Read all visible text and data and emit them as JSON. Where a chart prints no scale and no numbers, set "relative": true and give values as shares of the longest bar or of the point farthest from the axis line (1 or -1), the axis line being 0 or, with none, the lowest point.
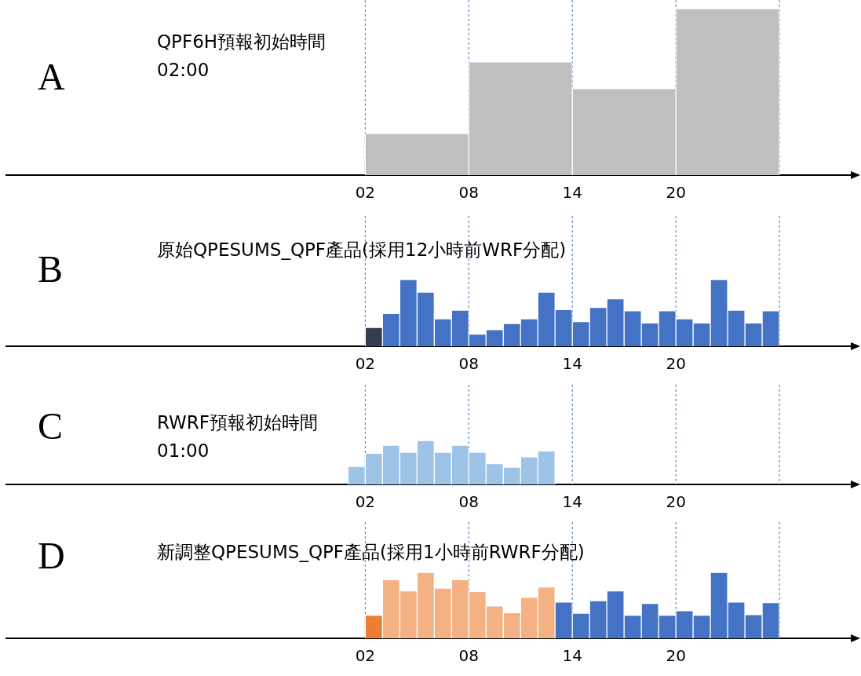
{
  "chart_data": [
    {
      "type": "bar",
      "title": "A",
      "subtitle": "QPF6H預報初始時間\n02:00",
      "relative": true,
      "x": [
        5,
        11,
        17,
        23
      ],
      "values": [
        0.25,
        0.68,
        0.52,
        1
      ],
      "colors": [
        "#bfbfbf",
        "#bfbfbf",
        "#bfbfbf",
        "#bfbfbf"
      ],
      "xlim": [
        -18.8,
        30.5
      ],
      "xticks": [
        {
          "value": 2,
          "label": "02"
        },
        {
          "value": 8,
          "label": "08"
        },
        {
          "value": 14,
          "label": "14"
        },
        {
          "value": 20,
          "label": "20"
        }
      ],
      "ref_lines": [
        {
          "axis": "x",
          "value": 2,
          "color": "#4472c4",
          "line_style": "dashed"
        },
        {
          "axis": "x",
          "value": 8,
          "color": "#4472c4",
          "line_style": "dashed"
        },
        {
          "axis": "x",
          "value": 14,
          "color": "#4472c4",
          "line_style": "dashed"
        },
        {
          "axis": "x",
          "value": 20,
          "color": "#4472c4",
          "line_style": "dashed"
        },
        {
          "axis": "x",
          "value": 26,
          "color": "#4472c4",
          "line_style": "dashed"
        }
      ]
    },
    {
      "type": "bar",
      "title": "B",
      "subtitle": "原始QPESUMS_QPF產品(採用12小時前WRF分配)",
      "relative": true,
      "x": [
        2.5,
        3.5,
        4.5,
        5.5,
        6.5,
        7.5,
        8.5,
        9.5,
        10.5,
        11.5,
        12.5,
        13.5,
        14.5,
        15.5,
        16.5,
        17.5,
        18.5,
        19.5,
        20.5,
        21.5,
        22.5,
        23.5,
        24.5,
        25.5
      ],
      "values": [
        0.28,
        0.49,
        1,
        0.81,
        0.41,
        0.54,
        0.18,
        0.25,
        0.34,
        0.41,
        0.81,
        0.55,
        0.37,
        0.58,
        0.71,
        0.53,
        0.35,
        0.53,
        0.41,
        0.35,
        1,
        0.54,
        0.35,
        0.53
      ],
      "colors": [
        "#333f50",
        "#4472c4",
        "#4472c4",
        "#4472c4",
        "#4472c4",
        "#4472c4",
        "#4472c4",
        "#4472c4",
        "#4472c4",
        "#4472c4",
        "#4472c4",
        "#4472c4",
        "#4472c4",
        "#4472c4",
        "#4472c4",
        "#4472c4",
        "#4472c4",
        "#4472c4",
        "#4472c4",
        "#4472c4",
        "#4472c4",
        "#4472c4",
        "#4472c4",
        "#4472c4"
      ],
      "xlim": [
        -18.8,
        30.5
      ],
      "xticks": [
        {
          "value": 2,
          "label": "02"
        },
        {
          "value": 8,
          "label": "08"
        },
        {
          "value": 14,
          "label": "14"
        },
        {
          "value": 20,
          "label": "20"
        }
      ],
      "ref_lines": [
        {
          "axis": "x",
          "value": 2,
          "color": "#4472c4",
          "line_style": "dashed"
        },
        {
          "axis": "x",
          "value": 8,
          "color": "#4472c4",
          "line_style": "dashed"
        },
        {
          "axis": "x",
          "value": 14,
          "color": "#4472c4",
          "line_style": "dashed"
        },
        {
          "axis": "x",
          "value": 20,
          "color": "#4472c4",
          "line_style": "dashed"
        },
        {
          "axis": "x",
          "value": 26,
          "color": "#4472c4",
          "line_style": "dashed"
        }
      ]
    },
    {
      "type": "bar",
      "title": "C",
      "subtitle": "RWRF預報初始時間\n01:00",
      "relative": true,
      "x": [
        1.5,
        2.5,
        3.5,
        4.5,
        5.5,
        6.5,
        7.5,
        8.5,
        9.5,
        10.5,
        11.5,
        12.5
      ],
      "values": [
        0.41,
        0.71,
        0.89,
        0.73,
        1,
        0.73,
        0.89,
        0.73,
        0.47,
        0.39,
        0.63,
        0.76
      ],
      "colors": [
        "#9dc3e6",
        "#9dc3e6",
        "#9dc3e6",
        "#9dc3e6",
        "#9dc3e6",
        "#9dc3e6",
        "#9dc3e6",
        "#9dc3e6",
        "#9dc3e6",
        "#9dc3e6",
        "#9dc3e6",
        "#9dc3e6"
      ],
      "xlim": [
        -18.8,
        30.5
      ],
      "xticks": [
        {
          "value": 2,
          "label": "02"
        },
        {
          "value": 8,
          "label": "08"
        },
        {
          "value": 14,
          "label": "14"
        },
        {
          "value": 20,
          "label": "20"
        }
      ],
      "ref_lines": [
        {
          "axis": "x",
          "value": 2,
          "color": "#4472c4",
          "line_style": "dashed"
        },
        {
          "axis": "x",
          "value": 8,
          "color": "#4472c4",
          "line_style": "dashed"
        },
        {
          "axis": "x",
          "value": 14,
          "color": "#4472c4",
          "line_style": "dashed"
        },
        {
          "axis": "x",
          "value": 20,
          "color": "#4472c4",
          "line_style": "dashed"
        },
        {
          "axis": "x",
          "value": 26,
          "color": "#4472c4",
          "line_style": "dashed"
        }
      ]
    },
    {
      "type": "bar",
      "title": "D",
      "subtitle": "新調整QPESUMS_QPF產品(採用1小時前RWRF分配)",
      "relative": true,
      "x": [
        2.5,
        3.5,
        4.5,
        5.5,
        6.5,
        7.5,
        8.5,
        9.5,
        10.5,
        11.5,
        12.5,
        13.5,
        14.5,
        15.5,
        16.5,
        17.5,
        18.5,
        19.5,
        20.5,
        21.5,
        22.5,
        23.5,
        24.5,
        25.5
      ],
      "values": [
        0.35,
        0.89,
        0.72,
        1,
        0.76,
        0.89,
        0.71,
        0.49,
        0.39,
        0.62,
        0.78,
        0.55,
        0.38,
        0.57,
        0.72,
        0.35,
        0.53,
        0.35,
        0.42,
        0.35,
        1,
        0.55,
        0.36,
        0.54
      ],
      "colors": [
        "#ed7d31",
        "#f4b183",
        "#f4b183",
        "#f4b183",
        "#f4b183",
        "#f4b183",
        "#f4b183",
        "#f4b183",
        "#f4b183",
        "#f4b183",
        "#f4b183",
        "#4472c4",
        "#4472c4",
        "#4472c4",
        "#4472c4",
        "#4472c4",
        "#4472c4",
        "#4472c4",
        "#4472c4",
        "#4472c4",
        "#4472c4",
        "#4472c4",
        "#4472c4",
        "#4472c4"
      ],
      "xlim": [
        -18.8,
        30.5
      ],
      "xticks": [
        {
          "value": 2,
          "label": "02"
        },
        {
          "value": 8,
          "label": "08"
        },
        {
          "value": 14,
          "label": "14"
        },
        {
          "value": 20,
          "label": "20"
        }
      ],
      "ref_lines": [
        {
          "axis": "x",
          "value": 2,
          "color": "#4472c4",
          "line_style": "dashed"
        },
        {
          "axis": "x",
          "value": 8,
          "color": "#4472c4",
          "line_style": "dashed"
        },
        {
          "axis": "x",
          "value": 14,
          "color": "#4472c4",
          "line_style": "dashed"
        },
        {
          "axis": "x",
          "value": 20,
          "color": "#4472c4",
          "line_style": "dashed"
        },
        {
          "axis": "x",
          "value": 26,
          "color": "#4472c4",
          "line_style": "dashed"
        }
      ]
    }
  ]
}
